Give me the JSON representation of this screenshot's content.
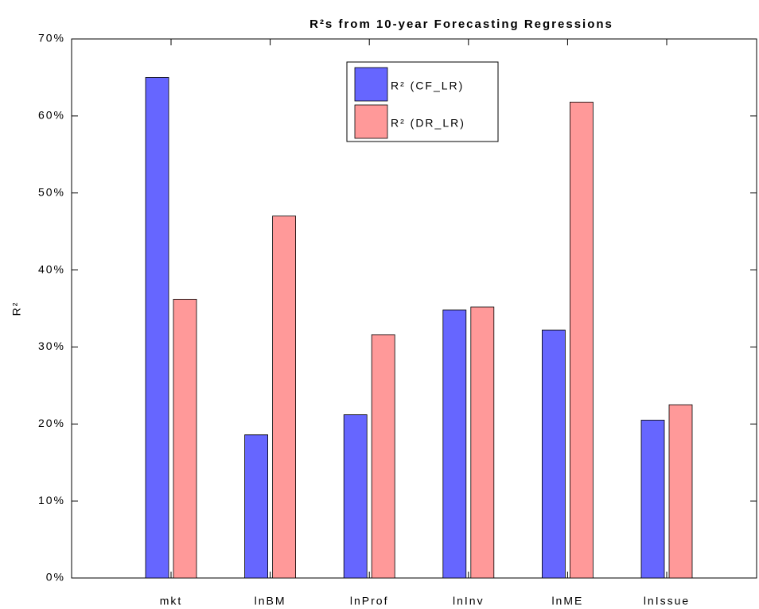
{
  "chart_data": {
    "type": "bar",
    "title": "R²s from 10-year Forecasting Regressions",
    "ylabel": "R²",
    "categories": [
      "mkt",
      "lnBM",
      "lnProf",
      "lnInv",
      "lnME",
      "lnIssue"
    ],
    "series": [
      {
        "name": "R² (CF_LR)",
        "color": "#6666ff",
        "values": [
          65,
          18.6,
          21.2,
          34.8,
          32.2,
          20.5
        ]
      },
      {
        "name": "R² (DR_LR)",
        "color": "#ff9999",
        "values": [
          36.2,
          47,
          31.6,
          35.2,
          61.8,
          22.5
        ]
      }
    ],
    "ylim": [
      0,
      70
    ],
    "yticks": [
      {
        "value": 0,
        "label": "0%"
      },
      {
        "value": 10,
        "label": "10%"
      },
      {
        "value": 20,
        "label": "20%"
      },
      {
        "value": 30,
        "label": "30%"
      },
      {
        "value": 40,
        "label": "40%"
      },
      {
        "value": 50,
        "label": "50%"
      },
      {
        "value": 60,
        "label": "60%"
      },
      {
        "value": 70,
        "label": "70%"
      }
    ],
    "grid": false
  }
}
